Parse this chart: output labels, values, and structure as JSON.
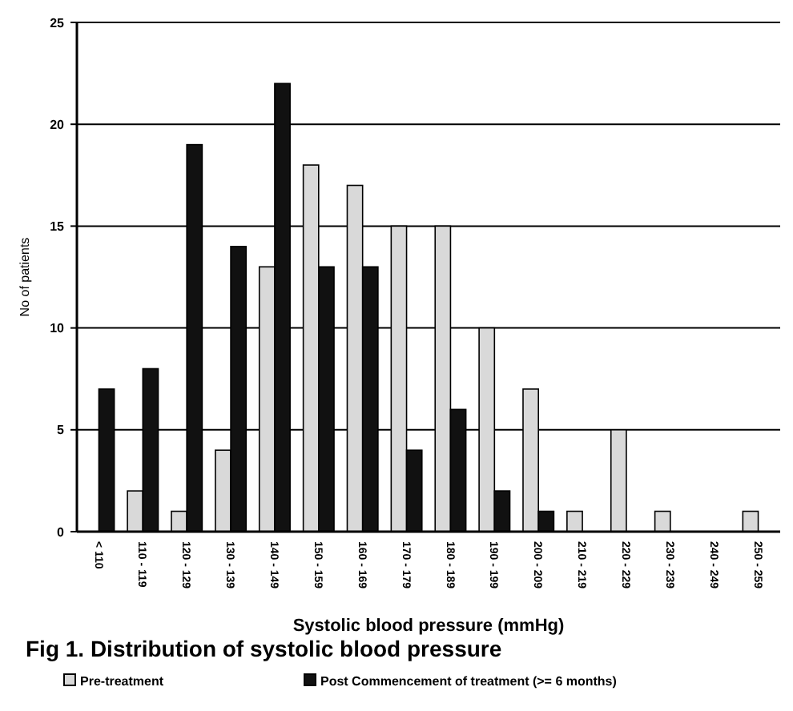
{
  "chart_data": {
    "type": "bar",
    "title": "Fig 1.  Distribution of systolic blood pressure",
    "xlabel": "Systolic blood pressure (mmHg)",
    "ylabel": "No of patients",
    "categories": [
      "< 110",
      "110 - 119",
      "120 - 129",
      "130 - 139",
      "140 - 149",
      "150 - 159",
      "160 - 169",
      "170 - 179",
      "180 - 189",
      "190 - 199",
      "200 - 209",
      "210 - 219",
      "220 - 229",
      "230 - 239",
      "240 - 249",
      "250 - 259"
    ],
    "series": [
      {
        "name": "Pre-treatment",
        "color": "#d9d9d9",
        "values": [
          0,
          2,
          1,
          4,
          13,
          18,
          17,
          15,
          15,
          10,
          7,
          1,
          5,
          1,
          0,
          1
        ]
      },
      {
        "name": "Post Commencement of treatment (>= 6 months)",
        "color": "#111111",
        "values": [
          7,
          8,
          19,
          14,
          22,
          13,
          13,
          4,
          6,
          2,
          1,
          0,
          0,
          0,
          0,
          0
        ]
      }
    ],
    "ylim": [
      0,
      25
    ],
    "yticks": [
      0,
      5,
      10,
      15,
      20,
      25
    ],
    "grid": "y",
    "legend": "bottom"
  }
}
